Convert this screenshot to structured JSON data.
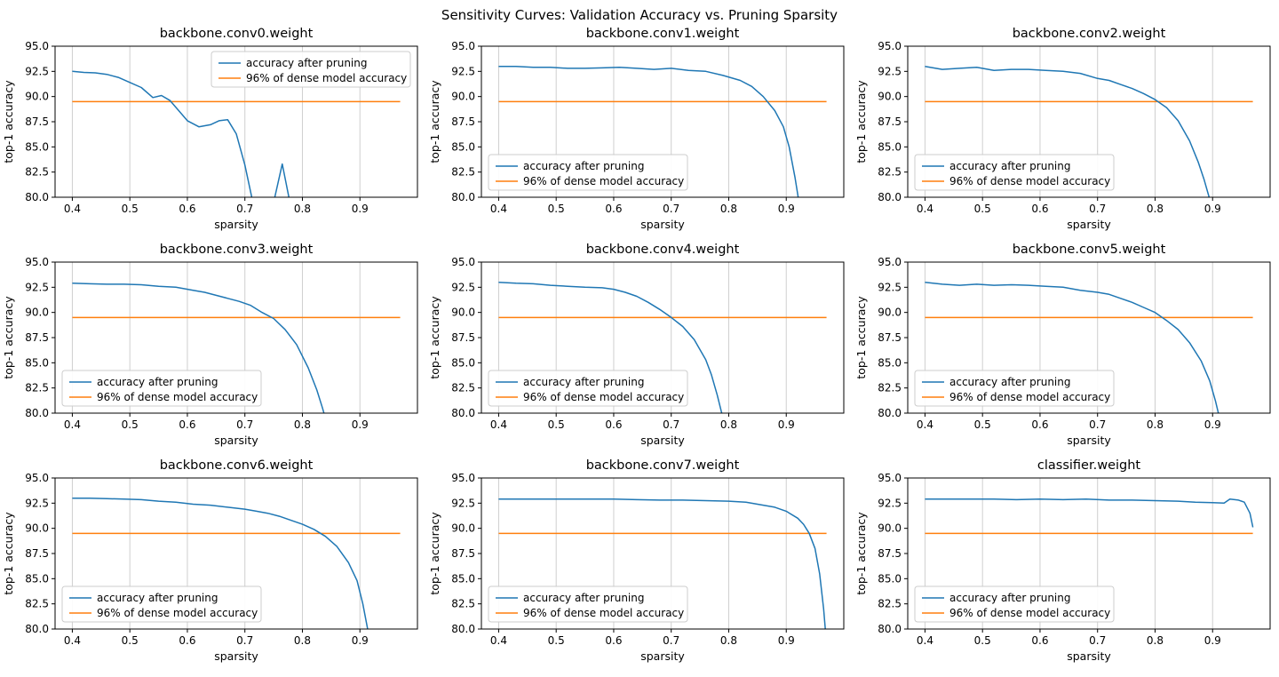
{
  "figure": {
    "title": "Sensitivity Curves: Validation Accuracy vs. Pruning Sparsity"
  },
  "chart_data": {
    "type": "line",
    "layout": "3x3-grid",
    "xlabel": "sparsity",
    "ylabel": "top-1 accuracy",
    "xlim": [
      0.37,
      1.0
    ],
    "ylim": [
      80.0,
      95.0
    ],
    "x_ticks": [
      0.4,
      0.5,
      0.6,
      0.7,
      0.8,
      0.9
    ],
    "y_ticks": [
      80.0,
      82.5,
      85.0,
      87.5,
      90.0,
      92.5,
      95.0
    ],
    "grid": "vertical-gridlines",
    "threshold_value": 89.5,
    "threshold_x_range": [
      0.4,
      0.97
    ],
    "legend": {
      "accuracy_label": "accuracy after pruning",
      "threshold_label": "96% of dense model accuracy",
      "accuracy_color": "#1f77b4",
      "threshold_color": "#ff7f0e"
    },
    "subplots": [
      {
        "title": "backbone.conv0.weight",
        "legend_loc": "upper right",
        "points": [
          [
            0.4,
            92.5
          ],
          [
            0.42,
            92.4
          ],
          [
            0.44,
            92.35
          ],
          [
            0.46,
            92.2
          ],
          [
            0.48,
            91.9
          ],
          [
            0.5,
            91.4
          ],
          [
            0.52,
            90.9
          ],
          [
            0.54,
            89.9
          ],
          [
            0.555,
            90.1
          ],
          [
            0.57,
            89.6
          ],
          [
            0.585,
            88.6
          ],
          [
            0.6,
            87.6
          ],
          [
            0.62,
            87.0
          ],
          [
            0.64,
            87.2
          ],
          [
            0.655,
            87.6
          ],
          [
            0.67,
            87.7
          ],
          [
            0.685,
            86.3
          ],
          [
            0.7,
            83.2
          ],
          [
            0.715,
            79.2
          ],
          [
            0.73,
            77.8
          ],
          [
            0.75,
            79.5
          ],
          [
            0.765,
            83.3
          ],
          [
            0.78,
            79.0
          ],
          [
            0.79,
            76.0
          ]
        ]
      },
      {
        "title": "backbone.conv1.weight",
        "legend_loc": "lower left",
        "points": [
          [
            0.4,
            93.0
          ],
          [
            0.43,
            93.0
          ],
          [
            0.46,
            92.9
          ],
          [
            0.49,
            92.9
          ],
          [
            0.52,
            92.8
          ],
          [
            0.55,
            92.8
          ],
          [
            0.58,
            92.85
          ],
          [
            0.61,
            92.9
          ],
          [
            0.64,
            92.8
          ],
          [
            0.67,
            92.7
          ],
          [
            0.7,
            92.8
          ],
          [
            0.73,
            92.6
          ],
          [
            0.76,
            92.5
          ],
          [
            0.79,
            92.1
          ],
          [
            0.82,
            91.6
          ],
          [
            0.84,
            91.0
          ],
          [
            0.86,
            90.0
          ],
          [
            0.88,
            88.6
          ],
          [
            0.895,
            87.0
          ],
          [
            0.905,
            85.0
          ],
          [
            0.915,
            82.0
          ],
          [
            0.925,
            78.5
          ]
        ]
      },
      {
        "title": "backbone.conv2.weight",
        "legend_loc": "lower left",
        "points": [
          [
            0.4,
            93.0
          ],
          [
            0.43,
            92.7
          ],
          [
            0.46,
            92.8
          ],
          [
            0.49,
            92.9
          ],
          [
            0.52,
            92.6
          ],
          [
            0.55,
            92.7
          ],
          [
            0.58,
            92.7
          ],
          [
            0.61,
            92.6
          ],
          [
            0.64,
            92.5
          ],
          [
            0.67,
            92.3
          ],
          [
            0.7,
            91.8
          ],
          [
            0.72,
            91.6
          ],
          [
            0.74,
            91.2
          ],
          [
            0.76,
            90.8
          ],
          [
            0.78,
            90.3
          ],
          [
            0.8,
            89.7
          ],
          [
            0.82,
            88.9
          ],
          [
            0.84,
            87.6
          ],
          [
            0.86,
            85.6
          ],
          [
            0.875,
            83.5
          ],
          [
            0.885,
            81.8
          ],
          [
            0.895,
            79.8
          ],
          [
            0.9,
            78.5
          ]
        ]
      },
      {
        "title": "backbone.conv3.weight",
        "legend_loc": "lower left",
        "points": [
          [
            0.4,
            92.9
          ],
          [
            0.43,
            92.85
          ],
          [
            0.46,
            92.8
          ],
          [
            0.49,
            92.8
          ],
          [
            0.52,
            92.75
          ],
          [
            0.55,
            92.6
          ],
          [
            0.58,
            92.5
          ],
          [
            0.61,
            92.2
          ],
          [
            0.63,
            92.0
          ],
          [
            0.65,
            91.7
          ],
          [
            0.67,
            91.4
          ],
          [
            0.69,
            91.1
          ],
          [
            0.71,
            90.7
          ],
          [
            0.73,
            90.0
          ],
          [
            0.75,
            89.4
          ],
          [
            0.77,
            88.3
          ],
          [
            0.79,
            86.8
          ],
          [
            0.81,
            84.5
          ],
          [
            0.825,
            82.3
          ],
          [
            0.835,
            80.5
          ],
          [
            0.845,
            78.5
          ]
        ]
      },
      {
        "title": "backbone.conv4.weight",
        "legend_loc": "lower left",
        "points": [
          [
            0.4,
            93.0
          ],
          [
            0.43,
            92.9
          ],
          [
            0.46,
            92.85
          ],
          [
            0.49,
            92.7
          ],
          [
            0.52,
            92.6
          ],
          [
            0.55,
            92.5
          ],
          [
            0.58,
            92.45
          ],
          [
            0.6,
            92.3
          ],
          [
            0.62,
            92.0
          ],
          [
            0.64,
            91.6
          ],
          [
            0.66,
            91.0
          ],
          [
            0.68,
            90.3
          ],
          [
            0.7,
            89.5
          ],
          [
            0.72,
            88.6
          ],
          [
            0.74,
            87.3
          ],
          [
            0.76,
            85.3
          ],
          [
            0.77,
            83.8
          ],
          [
            0.78,
            81.8
          ],
          [
            0.79,
            79.5
          ]
        ]
      },
      {
        "title": "backbone.conv5.weight",
        "legend_loc": "lower left",
        "points": [
          [
            0.4,
            93.0
          ],
          [
            0.43,
            92.8
          ],
          [
            0.46,
            92.7
          ],
          [
            0.49,
            92.8
          ],
          [
            0.52,
            92.7
          ],
          [
            0.55,
            92.75
          ],
          [
            0.58,
            92.7
          ],
          [
            0.61,
            92.6
          ],
          [
            0.64,
            92.5
          ],
          [
            0.67,
            92.2
          ],
          [
            0.7,
            92.0
          ],
          [
            0.72,
            91.8
          ],
          [
            0.74,
            91.4
          ],
          [
            0.76,
            91.0
          ],
          [
            0.78,
            90.5
          ],
          [
            0.8,
            90.0
          ],
          [
            0.82,
            89.2
          ],
          [
            0.84,
            88.3
          ],
          [
            0.86,
            87.0
          ],
          [
            0.88,
            85.2
          ],
          [
            0.895,
            83.2
          ],
          [
            0.905,
            81.2
          ],
          [
            0.915,
            78.8
          ]
        ]
      },
      {
        "title": "backbone.conv6.weight",
        "legend_loc": "lower left",
        "points": [
          [
            0.4,
            93.0
          ],
          [
            0.43,
            93.0
          ],
          [
            0.46,
            92.95
          ],
          [
            0.49,
            92.9
          ],
          [
            0.52,
            92.85
          ],
          [
            0.55,
            92.7
          ],
          [
            0.58,
            92.6
          ],
          [
            0.61,
            92.4
          ],
          [
            0.64,
            92.3
          ],
          [
            0.67,
            92.1
          ],
          [
            0.7,
            91.9
          ],
          [
            0.72,
            91.7
          ],
          [
            0.74,
            91.5
          ],
          [
            0.76,
            91.2
          ],
          [
            0.78,
            90.8
          ],
          [
            0.8,
            90.4
          ],
          [
            0.82,
            89.9
          ],
          [
            0.84,
            89.2
          ],
          [
            0.86,
            88.2
          ],
          [
            0.88,
            86.6
          ],
          [
            0.895,
            84.8
          ],
          [
            0.905,
            82.5
          ],
          [
            0.915,
            79.5
          ]
        ]
      },
      {
        "title": "backbone.conv7.weight",
        "legend_loc": "lower left",
        "points": [
          [
            0.4,
            92.9
          ],
          [
            0.44,
            92.9
          ],
          [
            0.48,
            92.9
          ],
          [
            0.52,
            92.9
          ],
          [
            0.56,
            92.9
          ],
          [
            0.6,
            92.9
          ],
          [
            0.64,
            92.85
          ],
          [
            0.68,
            92.8
          ],
          [
            0.72,
            92.8
          ],
          [
            0.76,
            92.75
          ],
          [
            0.8,
            92.7
          ],
          [
            0.83,
            92.6
          ],
          [
            0.86,
            92.3
          ],
          [
            0.88,
            92.1
          ],
          [
            0.9,
            91.7
          ],
          [
            0.92,
            91.0
          ],
          [
            0.93,
            90.4
          ],
          [
            0.94,
            89.5
          ],
          [
            0.95,
            88.0
          ],
          [
            0.958,
            85.5
          ],
          [
            0.965,
            82.0
          ],
          [
            0.97,
            78.5
          ]
        ]
      },
      {
        "title": "classifier.weight",
        "legend_loc": "lower left",
        "points": [
          [
            0.4,
            92.9
          ],
          [
            0.44,
            92.9
          ],
          [
            0.48,
            92.9
          ],
          [
            0.52,
            92.9
          ],
          [
            0.56,
            92.85
          ],
          [
            0.6,
            92.9
          ],
          [
            0.64,
            92.85
          ],
          [
            0.68,
            92.9
          ],
          [
            0.72,
            92.8
          ],
          [
            0.76,
            92.8
          ],
          [
            0.8,
            92.75
          ],
          [
            0.84,
            92.7
          ],
          [
            0.87,
            92.6
          ],
          [
            0.9,
            92.55
          ],
          [
            0.92,
            92.5
          ],
          [
            0.93,
            92.9
          ],
          [
            0.945,
            92.8
          ],
          [
            0.955,
            92.6
          ],
          [
            0.965,
            91.5
          ],
          [
            0.97,
            90.1
          ]
        ]
      }
    ]
  }
}
